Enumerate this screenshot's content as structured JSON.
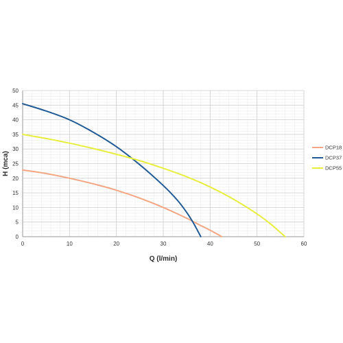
{
  "chart_data": {
    "type": "line",
    "title": "",
    "xlabel": "Q (l/min)",
    "ylabel": "H (mca)",
    "xlim": [
      0,
      60
    ],
    "ylim": [
      0,
      50
    ],
    "xticks": [
      0,
      10,
      20,
      30,
      40,
      50,
      60
    ],
    "yticks": [
      0,
      5,
      10,
      15,
      20,
      25,
      30,
      35,
      40,
      45,
      50
    ],
    "grid": true,
    "legend_position": "right",
    "series": [
      {
        "name": "DCP18",
        "color": "#f4a582",
        "points": [
          [
            0,
            22.8
          ],
          [
            5,
            21.6
          ],
          [
            10,
            20.0
          ],
          [
            15,
            18.1
          ],
          [
            20,
            15.9
          ],
          [
            25,
            13.2
          ],
          [
            30,
            10.0
          ],
          [
            35,
            6.3
          ],
          [
            38,
            3.8
          ],
          [
            40,
            2.2
          ],
          [
            42.5,
            0
          ]
        ]
      },
      {
        "name": "DCP37",
        "color": "#1f5a96",
        "points": [
          [
            0,
            45.5
          ],
          [
            5,
            43.0
          ],
          [
            10,
            40.0
          ],
          [
            15,
            35.8
          ],
          [
            20,
            30.8
          ],
          [
            25,
            24.6
          ],
          [
            30,
            17.5
          ],
          [
            33,
            12.5
          ],
          [
            35,
            8.3
          ],
          [
            36.5,
            4.5
          ],
          [
            38,
            0
          ]
        ]
      },
      {
        "name": "DCP55",
        "color": "#e8ee3c",
        "points": [
          [
            0,
            35.0
          ],
          [
            5,
            33.6
          ],
          [
            10,
            32.0
          ],
          [
            15,
            30.2
          ],
          [
            20,
            28.2
          ],
          [
            25,
            26.0
          ],
          [
            30,
            23.4
          ],
          [
            35,
            20.5
          ],
          [
            40,
            17.0
          ],
          [
            45,
            12.8
          ],
          [
            50,
            7.8
          ],
          [
            53,
            4.2
          ],
          [
            56,
            0
          ]
        ]
      }
    ]
  }
}
